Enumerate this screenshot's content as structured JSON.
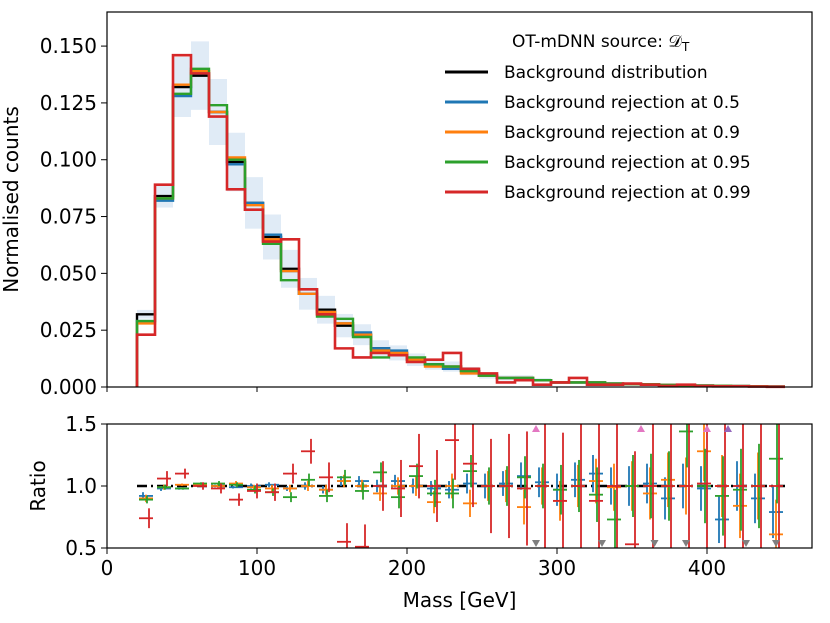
{
  "colors": {
    "background": "#000000",
    "rej05": "#1f77b4",
    "rej09": "#ff7f0e",
    "rej095": "#2ca02c",
    "rej099": "#d62728",
    "band": "#c6dbef",
    "markerDown": "#7f7f7f",
    "markerUpRed": "#e377c2",
    "markerUpBlue": "#9467bd"
  },
  "chart_data": [
    {
      "type": "line",
      "subtype": "step-histogram",
      "title": "",
      "xlabel": "",
      "ylabel": "Normalised counts",
      "xlim": [
        0,
        470
      ],
      "ylim": [
        0,
        0.165
      ],
      "yticks": [
        "0.000",
        "0.025",
        "0.050",
        "0.075",
        "0.100",
        "0.125",
        "0.150"
      ],
      "ytick_values": [
        0,
        0.025,
        0.05,
        0.075,
        0.1,
        0.125,
        0.15
      ],
      "bin_edges": [
        20,
        32,
        44,
        56,
        68,
        80,
        92,
        104,
        116,
        128,
        140,
        152,
        164,
        176,
        188,
        200,
        212,
        224,
        236,
        248,
        260,
        272,
        284,
        296,
        308,
        320,
        332,
        344,
        356,
        368,
        380,
        392,
        404,
        416,
        428,
        440,
        452
      ],
      "legend": {
        "title": "OT-mDNN source: 𝒟",
        "title_sub": "T",
        "position": "top-right",
        "entries": [
          "Background distribution",
          "Background rejection at 0.5",
          "Background rejection at 0.9",
          "Background rejection at 0.95",
          "Background rejection at 0.99"
        ]
      },
      "series": [
        {
          "name": "Background distribution",
          "color": "#000000",
          "values": [
            0.032,
            0.084,
            0.132,
            0.137,
            0.121,
            0.099,
            0.081,
            0.066,
            0.052,
            0.041,
            0.034,
            0.027,
            0.023,
            0.017,
            0.015,
            0.012,
            0.01,
            0.009,
            0.007,
            0.005,
            0.004,
            0.004,
            0.003,
            0.002,
            0.002,
            0.002,
            0.0015,
            0.0013,
            0.0012,
            0.0009,
            0.0008,
            0.0006,
            0.0005,
            0.0004,
            0.0003,
            0.0002
          ]
        },
        {
          "name": "Background rejection at 0.5",
          "color": "#1f77b4",
          "values": [
            0.029,
            0.082,
            0.128,
            0.138,
            0.121,
            0.098,
            0.081,
            0.067,
            0.051,
            0.041,
            0.033,
            0.028,
            0.024,
            0.017,
            0.016,
            0.012,
            0.01,
            0.008,
            0.007,
            0.005,
            0.004,
            0.004,
            0.003,
            0.002,
            0.002,
            0.002,
            0.0015,
            0.0013,
            0.0012,
            0.0009,
            0.0008,
            0.0006,
            0.0005,
            0.0004,
            0.0003,
            0.0002
          ]
        },
        {
          "name": "Background rejection at 0.9",
          "color": "#ff7f0e",
          "values": [
            0.028,
            0.083,
            0.133,
            0.139,
            0.121,
            0.101,
            0.08,
            0.065,
            0.051,
            0.041,
            0.033,
            0.028,
            0.023,
            0.016,
            0.015,
            0.012,
            0.009,
            0.009,
            0.006,
            0.005,
            0.004,
            0.004,
            0.003,
            0.002,
            0.002,
            0.002,
            0.0015,
            0.0013,
            0.0012,
            0.0009,
            0.0008,
            0.0006,
            0.0005,
            0.0004,
            0.0003,
            0.0002
          ]
        },
        {
          "name": "Background rejection at 0.95",
          "color": "#2ca02c",
          "values": [
            0.029,
            0.083,
            0.129,
            0.14,
            0.124,
            0.1,
            0.078,
            0.063,
            0.047,
            0.043,
            0.031,
            0.03,
            0.022,
            0.013,
            0.014,
            0.013,
            0.01,
            0.009,
            0.007,
            0.005,
            0.004,
            0.004,
            0.003,
            0.002,
            0.002,
            0.002,
            0.0015,
            0.0013,
            0.0012,
            0.0009,
            0.0008,
            0.0006,
            0.0005,
            0.0004,
            0.0003,
            0.0002
          ]
        },
        {
          "name": "Background rejection at 0.99",
          "color": "#d62728",
          "values": [
            0.023,
            0.089,
            0.146,
            0.138,
            0.119,
            0.087,
            0.078,
            0.064,
            0.065,
            0.043,
            0.032,
            0.017,
            0.013,
            0.015,
            0.014,
            0.011,
            0.012,
            0.015,
            0.008,
            0.006,
            0.002,
            0.003,
            0.001,
            0.002,
            0.004,
            0.001,
            0.001,
            0.0015,
            0.001,
            0.0005,
            0.001,
            0.0004,
            0.0003,
            0.0003,
            0.0002,
            0.0001
          ]
        }
      ]
    },
    {
      "type": "scatter",
      "subtype": "ratio-with-errorbars",
      "xlabel": "Mass [GeV]",
      "ylabel": "Ratio",
      "xlim": [
        0,
        470
      ],
      "ylim": [
        0.5,
        1.5
      ],
      "xticks": [
        "0",
        "100",
        "200",
        "300",
        "400"
      ],
      "xtick_values": [
        0,
        100,
        200,
        300,
        400
      ],
      "yticks": [
        "0.5",
        "1.0",
        "1.5"
      ],
      "ytick_values": [
        0.5,
        1.0,
        1.5
      ],
      "reference_line": 1.0,
      "series": [
        {
          "name": "Background rejection at 0.5",
          "color": "#1f77b4",
          "values": [
            0.92,
            0.98,
            0.98,
            1.01,
            1.0,
            0.99,
            1.0,
            1.01,
            0.98,
            1.0,
            0.97,
            1.04,
            1.04,
            1.0,
            1.04,
            1.0,
            0.98,
            0.97,
            1.02,
            1.0,
            1.02,
            1.08,
            1.03,
            0.97,
            1.05,
            1.1,
            1.0,
            1.0,
            1.02,
            0.9,
            1.0,
            0.98,
            0.73,
            1.0,
            0.9,
            0.79
          ],
          "err": [
            0.03,
            0.02,
            0.01,
            0.01,
            0.01,
            0.01,
            0.02,
            0.02,
            0.02,
            0.03,
            0.03,
            0.04,
            0.04,
            0.05,
            0.05,
            0.06,
            0.06,
            0.07,
            0.08,
            0.1,
            0.1,
            0.11,
            0.12,
            0.13,
            0.14,
            0.15,
            0.15,
            0.16,
            0.16,
            0.17,
            0.18,
            0.18,
            0.19,
            0.2,
            0.2,
            0.21
          ]
        },
        {
          "name": "Background rejection at 0.9",
          "color": "#ff7f0e",
          "values": [
            0.9,
            0.99,
            1.01,
            1.01,
            1.0,
            1.02,
            0.99,
            0.98,
            0.98,
            1.0,
            0.97,
            1.04,
            1.0,
            0.94,
            1.0,
            1.0,
            0.87,
            1.0,
            0.86,
            1.0,
            1.0,
            0.83,
            1.0,
            0.88,
            1.0,
            1.04,
            0.99,
            1.0,
            0.94,
            1.05,
            1.0,
            1.28,
            1.0,
            0.84,
            1.0,
            0.61
          ],
          "err": [
            0.03,
            0.02,
            0.01,
            0.01,
            0.01,
            0.02,
            0.02,
            0.03,
            0.03,
            0.04,
            0.04,
            0.05,
            0.05,
            0.06,
            0.07,
            0.08,
            0.09,
            0.1,
            0.11,
            0.12,
            0.13,
            0.14,
            0.15,
            0.16,
            0.17,
            0.18,
            0.19,
            0.2,
            0.21,
            0.22,
            0.23,
            0.24,
            0.25,
            0.26,
            0.27,
            0.28
          ]
        },
        {
          "name": "Background rejection at 0.95",
          "color": "#2ca02c",
          "values": [
            0.89,
            0.99,
            0.98,
            1.02,
            1.02,
            1.01,
            0.97,
            0.95,
            0.91,
            1.05,
            0.92,
            1.07,
            0.96,
            1.11,
            0.91,
            1.08,
            0.94,
            0.94,
            1.12,
            1.0,
            1.0,
            1.07,
            1.0,
            0.97,
            1.0,
            0.93,
            0.73,
            1.0,
            1.0,
            1.0,
            1.44,
            1.0,
            0.92,
            0.97,
            1.0,
            1.22
          ],
          "err": [
            0.03,
            0.02,
            0.01,
            0.01,
            0.02,
            0.02,
            0.03,
            0.03,
            0.04,
            0.05,
            0.05,
            0.06,
            0.07,
            0.08,
            0.09,
            0.1,
            0.11,
            0.12,
            0.13,
            0.15,
            0.16,
            0.17,
            0.18,
            0.2,
            0.21,
            0.22,
            0.24,
            0.25,
            0.26,
            0.28,
            0.29,
            0.3,
            0.32,
            0.33,
            0.34,
            0.36
          ]
        },
        {
          "name": "Background rejection at 0.99",
          "color": "#d62728",
          "values": [
            0.74,
            1.06,
            1.1,
            1.0,
            0.98,
            0.89,
            0.96,
            0.95,
            1.1,
            1.28,
            1.07,
            0.55,
            0.51,
            1.0,
            0.98,
            1.16,
            1.0,
            1.37,
            1.18,
            1.0,
            1.0,
            0.98,
            1.0,
            0.88,
            1.0,
            0.88,
            1.0,
            0.53,
            1.0,
            1.0,
            1.0,
            1.02,
            1.0,
            1.0,
            1.0,
            1.0
          ],
          "err": [
            0.08,
            0.06,
            0.04,
            0.03,
            0.04,
            0.05,
            0.06,
            0.07,
            0.08,
            0.1,
            0.12,
            0.15,
            0.18,
            0.2,
            0.23,
            0.26,
            0.29,
            0.32,
            0.35,
            0.38,
            0.42,
            0.46,
            0.5,
            0.55,
            0.6,
            0.65,
            0.7,
            0.75,
            0.8,
            0.85,
            0.9,
            0.95,
            1.0,
            1.05,
            1.1,
            1.15
          ]
        }
      ],
      "off_axis_markers": [
        {
          "x": 286,
          "dir": "up",
          "color": "#e377c2"
        },
        {
          "x": 286,
          "dir": "down",
          "color": "#7f7f7f"
        },
        {
          "x": 330,
          "dir": "down",
          "color": "#7f7f7f"
        },
        {
          "x": 356,
          "dir": "up",
          "color": "#e377c2"
        },
        {
          "x": 365,
          "dir": "down",
          "color": "#7f7f7f"
        },
        {
          "x": 386,
          "dir": "down",
          "color": "#7f7f7f"
        },
        {
          "x": 400,
          "dir": "up",
          "color": "#e377c2"
        },
        {
          "x": 414,
          "dir": "up",
          "color": "#9467bd"
        },
        {
          "x": 426,
          "dir": "down",
          "color": "#7f7f7f"
        },
        {
          "x": 446,
          "dir": "down",
          "color": "#7f7f7f"
        }
      ]
    }
  ]
}
